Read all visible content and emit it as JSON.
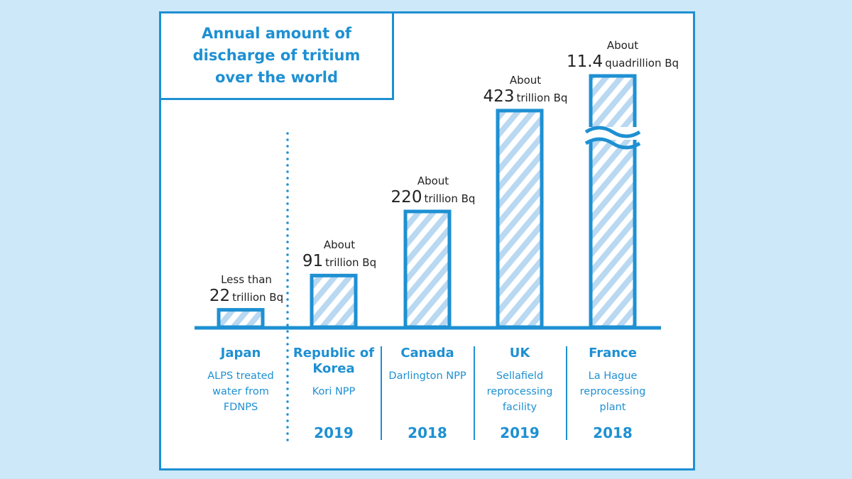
{
  "colors": {
    "accent": "#1e90d2",
    "stripe": "#b9d8f1",
    "background": "#cde8f8"
  },
  "chart_data": {
    "type": "bar",
    "title": "Annual amount of discharge of tritium over the world",
    "value_unit": "trillion Bq",
    "categories": [
      "Japan",
      "Republic of Korea",
      "Canada",
      "UK",
      "France"
    ],
    "values": [
      22,
      91,
      220,
      423,
      11400
    ],
    "bars": [
      {
        "country": "Japan",
        "facility": "ALPS treated water from FDNPS",
        "year": "",
        "prefix": "Less than",
        "number": "22",
        "unit": "trillion Bq",
        "value": 22,
        "broken": false
      },
      {
        "country": "Republic of Korea",
        "facility": "Kori NPP",
        "year": "2019",
        "prefix": "About",
        "number": "91",
        "unit": "trillion Bq",
        "value": 91,
        "broken": false
      },
      {
        "country": "Canada",
        "facility": "Darlington NPP",
        "year": "2018",
        "prefix": "About",
        "number": "220",
        "unit": "trillion Bq",
        "value": 220,
        "broken": false
      },
      {
        "country": "UK",
        "facility": "Sellafield reprocessing facility",
        "year": "2019",
        "prefix": "About",
        "number": "423",
        "unit": "trillion Bq",
        "value": 423,
        "broken": false
      },
      {
        "country": "France",
        "facility": "La Hague reprocessing plant",
        "year": "2018",
        "prefix": "About",
        "number": "11.4",
        "unit": "quadrillion Bq",
        "value": 11400,
        "broken": true
      }
    ]
  }
}
